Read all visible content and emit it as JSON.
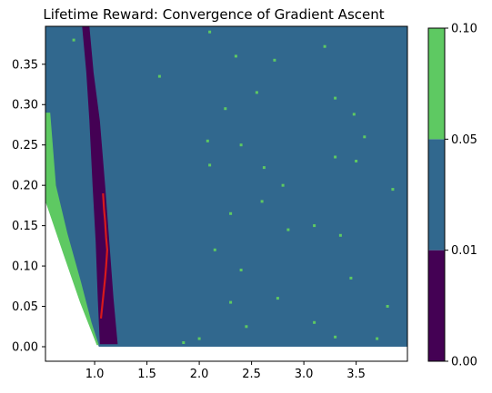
{
  "chart_data": {
    "type": "heatmap",
    "title": "Lifetime Reward: Convergence of Gradient Ascent",
    "xlabel": "",
    "ylabel": "",
    "xlim": [
      0.53,
      3.99
    ],
    "ylim": [
      -0.018,
      0.397
    ],
    "x_ticks": [
      1.0,
      1.5,
      2.0,
      2.5,
      3.0,
      3.5
    ],
    "x_tick_labels": [
      "1.0",
      "1.5",
      "2.0",
      "2.5",
      "3.0",
      "3.5"
    ],
    "y_ticks": [
      0.0,
      0.05,
      0.1,
      0.15,
      0.2,
      0.25,
      0.3,
      0.35
    ],
    "y_tick_labels": [
      "0.00",
      "0.05",
      "0.10",
      "0.15",
      "0.20",
      "0.25",
      "0.30",
      "0.35"
    ],
    "data_region": {
      "x": [
        0.53,
        3.99
      ],
      "y": [
        0.0,
        0.397
      ]
    },
    "levels": [
      {
        "range": [
          0.0,
          0.01
        ],
        "color": "#440154"
      },
      {
        "range": [
          0.01,
          0.05
        ],
        "color": "#31688e"
      },
      {
        "range": [
          0.05,
          0.1
        ],
        "color": "#5ec962"
      }
    ],
    "background_level": 1,
    "colorbar": {
      "ticks": [
        0.0,
        0.01,
        0.05,
        0.1
      ],
      "tick_labels": [
        "0.00",
        "0.01",
        "0.05",
        "0.10"
      ]
    },
    "green_wedge": [
      [
        0.53,
        0.29
      ],
      [
        0.575,
        0.29
      ],
      [
        0.63,
        0.2
      ],
      [
        0.74,
        0.14
      ],
      [
        0.87,
        0.08
      ],
      [
        0.97,
        0.03
      ],
      [
        1.04,
        0.002
      ],
      [
        1.02,
        0.002
      ],
      [
        0.86,
        0.055
      ],
      [
        0.7,
        0.115
      ],
      [
        0.53,
        0.18
      ]
    ],
    "white_region": [
      [
        0.53,
        0.0
      ],
      [
        1.04,
        0.0
      ],
      [
        0.53,
        0.18
      ]
    ],
    "purple_band": {
      "left_edge": [
        [
          0.88,
          0.397
        ],
        [
          0.92,
          0.34
        ],
        [
          0.95,
          0.28
        ],
        [
          0.98,
          0.2
        ],
        [
          1.01,
          0.13
        ],
        [
          1.03,
          0.06
        ],
        [
          1.05,
          0.003
        ]
      ],
      "right_edge": [
        [
          1.22,
          0.003
        ],
        [
          1.18,
          0.06
        ],
        [
          1.14,
          0.13
        ],
        [
          1.1,
          0.2
        ],
        [
          1.05,
          0.28
        ],
        [
          0.99,
          0.34
        ],
        [
          0.95,
          0.397
        ]
      ]
    },
    "scattered_green": [
      [
        0.8,
        0.38
      ],
      [
        2.1,
        0.39
      ],
      [
        2.35,
        0.36
      ],
      [
        2.72,
        0.355
      ],
      [
        3.2,
        0.372
      ],
      [
        1.62,
        0.335
      ],
      [
        2.25,
        0.295
      ],
      [
        2.55,
        0.315
      ],
      [
        3.3,
        0.308
      ],
      [
        3.48,
        0.288
      ],
      [
        2.08,
        0.255
      ],
      [
        2.4,
        0.25
      ],
      [
        3.58,
        0.26
      ],
      [
        2.1,
        0.225
      ],
      [
        2.62,
        0.222
      ],
      [
        3.3,
        0.235
      ],
      [
        3.5,
        0.23
      ],
      [
        2.8,
        0.2
      ],
      [
        3.85,
        0.195
      ],
      [
        2.3,
        0.165
      ],
      [
        2.6,
        0.18
      ],
      [
        3.1,
        0.15
      ],
      [
        2.85,
        0.145
      ],
      [
        3.35,
        0.138
      ],
      [
        2.15,
        0.12
      ],
      [
        2.4,
        0.095
      ],
      [
        3.45,
        0.085
      ],
      [
        2.75,
        0.06
      ],
      [
        2.3,
        0.055
      ],
      [
        3.8,
        0.05
      ],
      [
        3.1,
        0.03
      ],
      [
        2.45,
        0.025
      ],
      [
        2.0,
        0.01
      ],
      [
        3.7,
        0.01
      ],
      [
        1.85,
        0.005
      ],
      [
        3.3,
        0.012
      ]
    ],
    "series": [
      {
        "type": "line",
        "color": "#d7191c",
        "x": [
          1.08,
          1.09,
          1.1,
          1.11,
          1.12,
          1.11,
          1.1,
          1.08,
          1.06
        ],
        "y": [
          0.19,
          0.17,
          0.155,
          0.135,
          0.12,
          0.1,
          0.085,
          0.06,
          0.035
        ]
      }
    ]
  }
}
